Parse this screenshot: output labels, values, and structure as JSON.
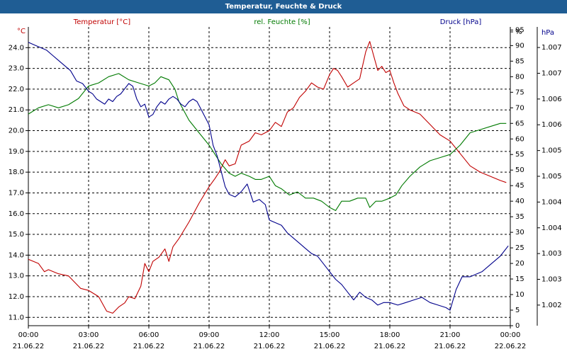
{
  "window_title": "Temperatur, Feuchte & Druck",
  "colors": {
    "titlebar": "#1f5d94",
    "temperature": "#c00000",
    "humidity": "#007a00",
    "pressure": "#00008b",
    "grid": "#000000"
  },
  "chart_data": {
    "type": "line",
    "title": "Temperatur, Feuchte & Druck",
    "grid": true,
    "x_ticks": [
      {
        "time": "00:00",
        "date": "21.06.22",
        "hour": 0
      },
      {
        "time": "03:00",
        "date": "21.06.22",
        "hour": 3
      },
      {
        "time": "06:00",
        "date": "21.06.22",
        "hour": 6
      },
      {
        "time": "09:00",
        "date": "21.06.22",
        "hour": 9
      },
      {
        "time": "12:00",
        "date": "21.06.22",
        "hour": 12
      },
      {
        "time": "15:00",
        "date": "21.06.22",
        "hour": 15
      },
      {
        "time": "18:00",
        "date": "21.06.22",
        "hour": 18
      },
      {
        "time": "21:00",
        "date": "21.06.22",
        "hour": 21
      },
      {
        "time": "00:00",
        "date": "22.06.22",
        "hour": 24
      }
    ],
    "axes": {
      "temperature": {
        "label": "Temperatur [°C]",
        "unit": "°C",
        "range": [
          10.6,
          25.0
        ],
        "ticks": [
          "11.0",
          "12.0",
          "13.0",
          "14.0",
          "15.0",
          "16.0",
          "17.0",
          "18.0",
          "19.0",
          "20.0",
          "21.0",
          "22.0",
          "23.0",
          "24.0"
        ]
      },
      "humidity": {
        "label": "rel. Feuchte [%]",
        "unit": "%",
        "range": [
          0,
          96
        ],
        "ticks": [
          "0",
          "5",
          "10",
          "15",
          "20",
          "25",
          "30",
          "35",
          "40",
          "45",
          "50",
          "55",
          "60",
          "65",
          "70",
          "75",
          "80",
          "85",
          "90",
          "95",
          "%"
        ]
      },
      "pressure": {
        "label": "Druck [hPa]",
        "unit": "hPa",
        "range": [
          1001.6,
          1007.4
        ],
        "ticks": [
          "1.002",
          "1.003",
          "1.003",
          "1.004",
          "1.004",
          "1.005",
          "1.005",
          "1.006",
          "1.006",
          "1.007",
          "1.007"
        ],
        "tick_values": [
          1002.0,
          1002.5,
          1003.0,
          1003.5,
          1004.0,
          1004.5,
          1005.0,
          1005.5,
          1006.0,
          1006.5,
          1007.0
        ]
      }
    },
    "series": [
      {
        "name": "Temperatur [°C]",
        "axis": "temperature",
        "x": [
          0,
          0.5,
          0.8,
          1,
          1.5,
          2,
          2.3,
          2.6,
          3,
          3.5,
          3.9,
          4.2,
          4.5,
          4.8,
          5,
          5.3,
          5.6,
          5.8,
          6,
          6.2,
          6.5,
          6.8,
          7,
          7.2,
          7.5,
          8,
          8.5,
          9,
          9.3,
          9.5,
          9.8,
          10,
          10.3,
          10.6,
          11,
          11.3,
          11.6,
          12,
          12.3,
          12.6,
          12.9,
          13.2,
          13.5,
          13.8,
          14.1,
          14.4,
          14.7,
          15,
          15.2,
          15.4,
          15.6,
          15.9,
          16.2,
          16.5,
          16.8,
          17,
          17.2,
          17.4,
          17.6,
          17.8,
          18,
          18.2,
          18.4,
          18.7,
          19,
          19.5,
          20,
          20.5,
          21,
          21.5,
          22,
          22.5,
          23,
          23.5,
          23.8
        ],
        "values": [
          13.8,
          13.6,
          13.2,
          13.3,
          13.1,
          13.0,
          12.7,
          12.4,
          12.3,
          12.0,
          11.3,
          11.2,
          11.5,
          11.7,
          12.0,
          11.9,
          12.5,
          13.6,
          13.2,
          13.7,
          13.9,
          14.3,
          13.7,
          14.4,
          14.8,
          15.6,
          16.5,
          17.3,
          17.7,
          18.0,
          18.6,
          18.3,
          18.4,
          19.3,
          19.5,
          19.9,
          19.8,
          20.0,
          20.4,
          20.2,
          20.9,
          21.1,
          21.6,
          21.9,
          22.3,
          22.1,
          22.0,
          22.7,
          23.0,
          22.9,
          22.6,
          22.1,
          22.3,
          22.5,
          23.8,
          24.3,
          23.6,
          22.9,
          23.1,
          22.8,
          22.9,
          22.3,
          21.8,
          21.2,
          21.0,
          20.8,
          20.3,
          19.8,
          19.5,
          18.9,
          18.3,
          18.0,
          17.8,
          17.6,
          17.5
        ]
      },
      {
        "name": "rel. Feuchte [%]",
        "axis": "humidity",
        "x": [
          0,
          0.5,
          1,
          1.5,
          2,
          2.5,
          3,
          3.5,
          4,
          4.5,
          5,
          5.5,
          6,
          6.3,
          6.6,
          7,
          7.3,
          7.5,
          8,
          8.5,
          9,
          9.3,
          9.6,
          10,
          10.3,
          10.6,
          11,
          11.3,
          11.6,
          12,
          12.3,
          12.6,
          13,
          13.4,
          13.8,
          14.2,
          14.6,
          15,
          15.3,
          15.6,
          16,
          16.4,
          16.8,
          17,
          17.3,
          17.6,
          18,
          18.3,
          18.6,
          19,
          19.5,
          20,
          20.5,
          21,
          21.5,
          22,
          22.5,
          23,
          23.5,
          23.8
        ],
        "values": [
          68,
          70,
          71,
          70,
          71,
          73,
          77,
          78,
          80,
          81,
          79,
          78,
          77,
          78,
          80,
          79,
          76,
          72,
          66,
          62,
          58,
          55,
          52,
          49,
          48,
          49,
          48,
          47,
          47,
          48,
          45,
          44,
          42,
          43,
          41,
          41,
          40,
          38,
          37,
          40,
          40,
          41,
          41,
          38,
          40,
          40,
          41,
          42,
          45,
          48,
          51,
          53,
          54,
          55,
          58,
          62,
          63,
          64,
          65,
          65
        ]
      },
      {
        "name": "Druck [hPa]",
        "axis": "pressure",
        "x": [
          0,
          0.3,
          0.6,
          0.9,
          1.2,
          1.5,
          1.8,
          2.1,
          2.4,
          2.7,
          3,
          3.2,
          3.4,
          3.6,
          3.8,
          4,
          4.2,
          4.4,
          4.6,
          4.8,
          5,
          5.2,
          5.4,
          5.6,
          5.8,
          6,
          6.2,
          6.4,
          6.6,
          6.8,
          7,
          7.2,
          7.4,
          7.6,
          7.8,
          8,
          8.2,
          8.4,
          8.6,
          8.8,
          9,
          9.2,
          9.4,
          9.6,
          9.8,
          10,
          10.3,
          10.6,
          10.9,
          11.2,
          11.5,
          11.8,
          12,
          12.3,
          12.6,
          12.9,
          13.2,
          13.5,
          13.8,
          14.1,
          14.4,
          14.7,
          15,
          15.3,
          15.6,
          15.9,
          16.2,
          16.5,
          16.8,
          17.1,
          17.4,
          17.7,
          18,
          18.4,
          18.8,
          19.2,
          19.6,
          20,
          20.4,
          20.8,
          21,
          21.3,
          21.6,
          22,
          22.3,
          22.6,
          22.9,
          23.2,
          23.5,
          23.7,
          23.9
        ],
        "values": [
          1007.1,
          1007.05,
          1007.0,
          1006.95,
          1006.85,
          1006.75,
          1006.65,
          1006.55,
          1006.35,
          1006.3,
          1006.15,
          1006.1,
          1006.0,
          1005.95,
          1005.9,
          1006.0,
          1005.95,
          1006.05,
          1006.1,
          1006.2,
          1006.3,
          1006.25,
          1006.0,
          1005.85,
          1005.9,
          1005.65,
          1005.7,
          1005.85,
          1005.95,
          1005.9,
          1006.0,
          1006.05,
          1006.0,
          1005.9,
          1005.85,
          1005.95,
          1006.0,
          1005.95,
          1005.8,
          1005.65,
          1005.5,
          1005.1,
          1004.9,
          1004.6,
          1004.3,
          1004.15,
          1004.1,
          1004.2,
          1004.35,
          1004.0,
          1004.05,
          1003.95,
          1003.65,
          1003.6,
          1003.55,
          1003.4,
          1003.3,
          1003.2,
          1003.1,
          1003.0,
          1002.95,
          1002.8,
          1002.65,
          1002.5,
          1002.4,
          1002.25,
          1002.1,
          1002.25,
          1002.15,
          1002.1,
          1002.0,
          1002.05,
          1002.05,
          1002.0,
          1002.05,
          1002.1,
          1002.15,
          1002.05,
          1002.0,
          1001.95,
          1001.9,
          1002.3,
          1002.55,
          1002.55,
          1002.6,
          1002.65,
          1002.75,
          1002.85,
          1002.95,
          1003.05,
          1003.15
        ]
      }
    ]
  }
}
